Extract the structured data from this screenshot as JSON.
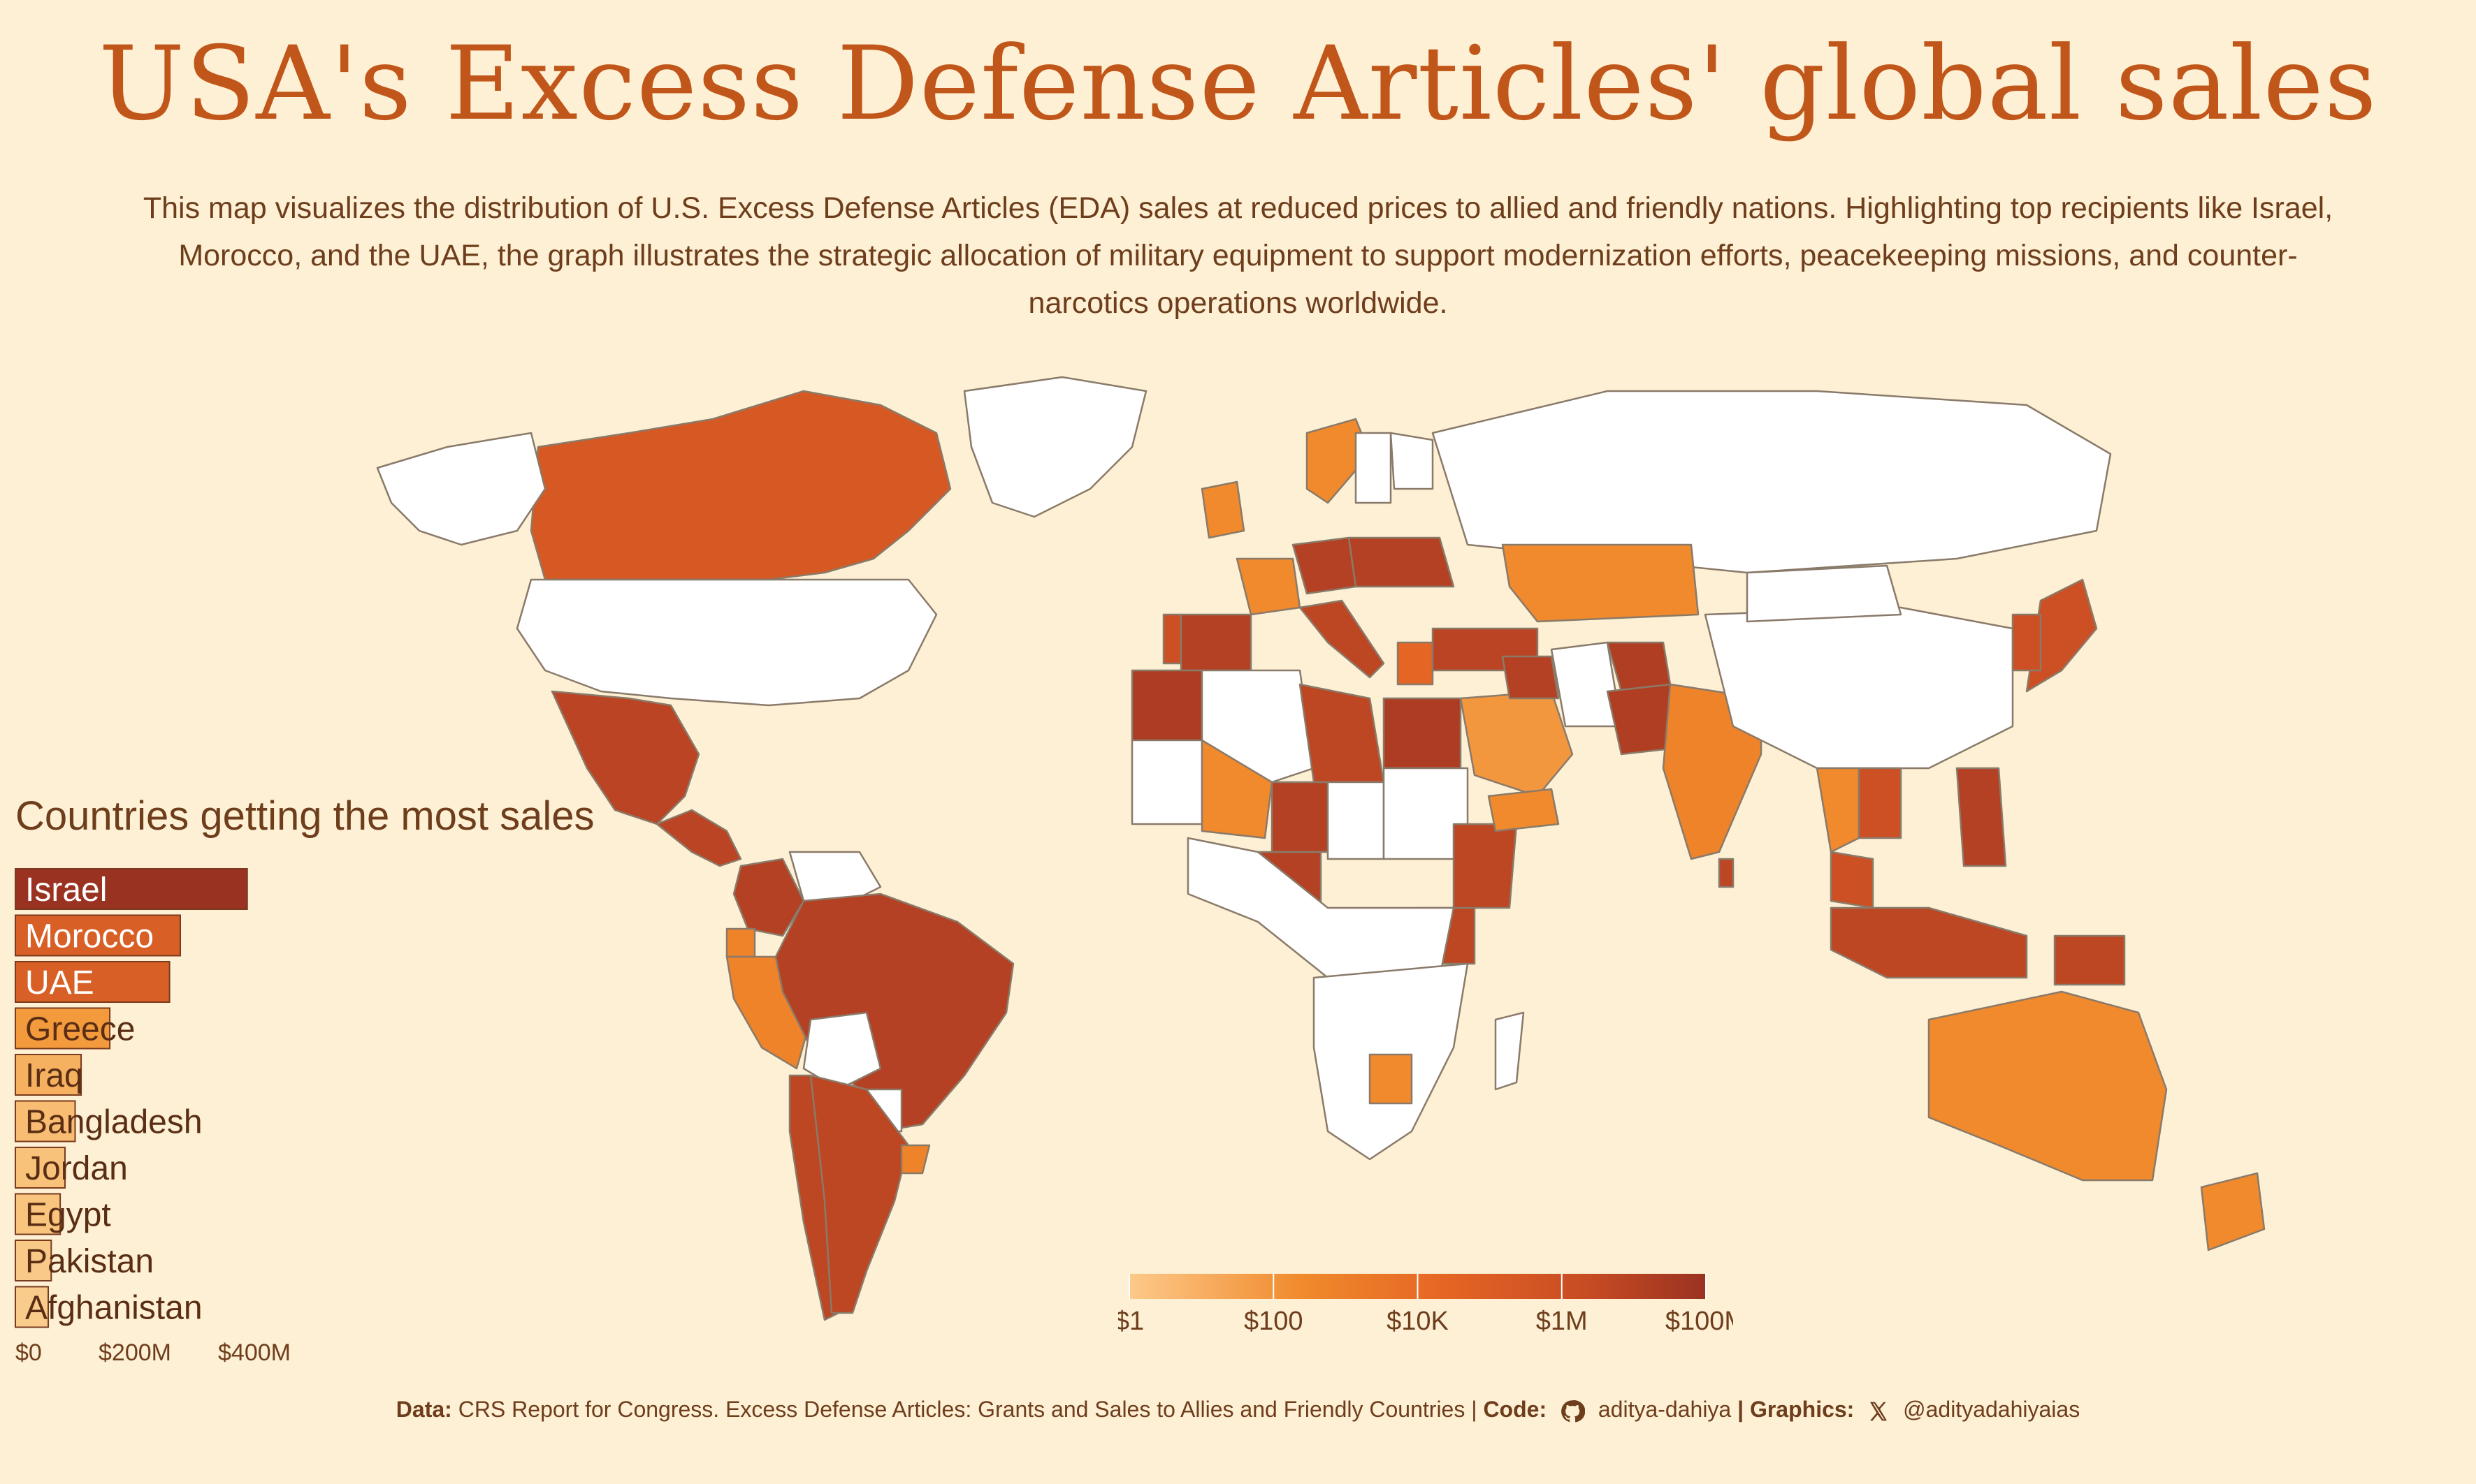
{
  "title": "USA's Excess Defense Articles' global sales",
  "subtitle": "This map visualizes the distribution of U.S. Excess Defense Articles (EDA) sales at reduced prices to allied and friendly nations. Highlighting top recipients like Israel, Morocco, and the UAE, the graph illustrates the strategic allocation of military equipment to support modernization efforts, peacekeeping missions, and counter-narcotics operations worldwide.",
  "colors": {
    "background": "#fdf0d4",
    "title": "#c1561a",
    "text": "#6e3d1c",
    "no_data": "#ffffff",
    "scale": [
      "#fdc98a",
      "#f08a2c",
      "#e56524",
      "#c64b23",
      "#9a3222"
    ]
  },
  "caption": {
    "data_label": "Data:",
    "data_text": "CRS Report for Congress. Excess Defense Articles: Grants and Sales to Allies and Friendly Countries |",
    "code_label": "Code:",
    "code_icon": "github-icon",
    "code_text": "aditya-dahiya",
    "graphics_label": "| Graphics:",
    "graphics_icon": "x-logo-icon",
    "graphics_text": "@adityadahiyaias"
  },
  "chart_data": [
    {
      "type": "bar",
      "title": "Countries getting the most sales",
      "orientation": "horizontal",
      "categories": [
        "Israel",
        "Morocco",
        "UAE",
        "Greece",
        "Iraq",
        "Bangladesh",
        "Jordan",
        "Egypt",
        "Pakistan",
        "Afghanistan"
      ],
      "values": [
        388,
        276,
        258,
        158,
        110,
        100,
        83,
        75,
        60,
        55
      ],
      "units": "USD millions (approx.)",
      "xlim": [
        0,
        450
      ],
      "tick_values": [
        0,
        200,
        400
      ],
      "tick_labels": [
        "$0",
        "$200M",
        "$400M"
      ],
      "bar_colors": [
        "#9a3222",
        "#d85f26",
        "#d85f26",
        "#f29a3c",
        "#f6b160",
        "#f8bd72",
        "#f8c27a",
        "#f8c47e",
        "#f9c988",
        "#f9cc8c"
      ]
    },
    {
      "type": "heatmap",
      "subtype": "choropleth",
      "legend": {
        "scale": "log",
        "tick_labels": [
          "$1",
          "$100",
          "$10K",
          "$1M",
          "$100M"
        ],
        "tick_values": [
          1,
          100,
          10000,
          1000000,
          100000000
        ],
        "placement": "bottom-center"
      },
      "regions": [
        {
          "name": "Canada",
          "level": 0.62
        },
        {
          "name": "Greenland",
          "level": null
        },
        {
          "name": "Alaska",
          "level": null
        },
        {
          "name": "USA",
          "level": null
        },
        {
          "name": "Mexico",
          "level": 0.82
        },
        {
          "name": "Central America",
          "level": 0.82
        },
        {
          "name": "Colombia",
          "level": 0.85
        },
        {
          "name": "Venezuela",
          "level": null
        },
        {
          "name": "Ecuador",
          "level": 0.3
        },
        {
          "name": "Peru",
          "level": 0.3
        },
        {
          "name": "Brazil",
          "level": 0.85
        },
        {
          "name": "Bolivia",
          "level": null
        },
        {
          "name": "Paraguay",
          "level": null
        },
        {
          "name": "Chile",
          "level": 0.8
        },
        {
          "name": "Argentina",
          "level": 0.8
        },
        {
          "name": "Uruguay",
          "level": 0.3
        },
        {
          "name": "Portugal",
          "level": 0.7
        },
        {
          "name": "Spain",
          "level": 0.85
        },
        {
          "name": "France",
          "level": 0.25
        },
        {
          "name": "UK",
          "level": 0.25
        },
        {
          "name": "Germany",
          "level": 0.85
        },
        {
          "name": "Poland",
          "level": 0.85
        },
        {
          "name": "Italy",
          "level": 0.8
        },
        {
          "name": "Greece",
          "level": 0.5
        },
        {
          "name": "Turkey",
          "level": 0.82
        },
        {
          "name": "Norway",
          "level": 0.25
        },
        {
          "name": "Sweden",
          "level": null
        },
        {
          "name": "Finland",
          "level": null
        },
        {
          "name": "Russia",
          "level": null
        },
        {
          "name": "Kazakhstan",
          "level": 0.25
        },
        {
          "name": "Morocco",
          "level": 0.9
        },
        {
          "name": "Algeria",
          "level": null
        },
        {
          "name": "Libya",
          "level": 0.8
        },
        {
          "name": "Egypt",
          "level": 0.9
        },
        {
          "name": "Mauritania",
          "level": null
        },
        {
          "name": "Mali",
          "level": 0.25
        },
        {
          "name": "Niger",
          "level": 0.85
        },
        {
          "name": "Chad",
          "level": null
        },
        {
          "name": "Sudan",
          "level": null
        },
        {
          "name": "Ethiopia",
          "level": 0.8
        },
        {
          "name": "Kenya",
          "level": 0.8
        },
        {
          "name": "Nigeria",
          "level": 0.85
        },
        {
          "name": "Central Africa",
          "level": null
        },
        {
          "name": "Southern Africa",
          "level": null
        },
        {
          "name": "Botswana",
          "level": 0.25
        },
        {
          "name": "Madagascar",
          "level": null
        },
        {
          "name": "Saudi Arabia",
          "level": 0.2
        },
        {
          "name": "Yemen",
          "level": 0.25
        },
        {
          "name": "Iran",
          "level": null
        },
        {
          "name": "Iraq",
          "level": 0.85
        },
        {
          "name": "Afghanistan",
          "level": 0.88
        },
        {
          "name": "Pakistan",
          "level": 0.88
        },
        {
          "name": "India",
          "level": 0.3
        },
        {
          "name": "Bangladesh",
          "level": 0.9
        },
        {
          "name": "China",
          "level": null
        },
        {
          "name": "Mongolia",
          "level": null
        },
        {
          "name": "Japan",
          "level": 0.7
        },
        {
          "name": "Korea",
          "level": 0.7
        },
        {
          "name": "Thailand",
          "level": 0.25
        },
        {
          "name": "Cambodia",
          "level": 0.7
        },
        {
          "name": "Malaysia",
          "level": 0.7
        },
        {
          "name": "Philippines",
          "level": 0.85
        },
        {
          "name": "Indonesia",
          "level": 0.8
        },
        {
          "name": "Papua New Guinea",
          "level": 0.8
        },
        {
          "name": "Australia",
          "level": 0.25
        },
        {
          "name": "New Zealand",
          "level": 0.25
        },
        {
          "name": "Sri Lanka",
          "level": 0.8
        }
      ]
    }
  ]
}
